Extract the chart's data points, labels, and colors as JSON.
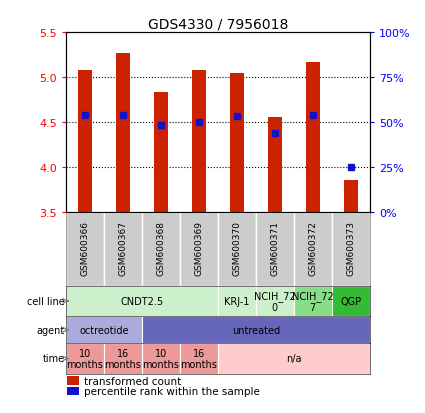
{
  "title": "GDS4330 / 7956018",
  "samples": [
    "GSM600366",
    "GSM600367",
    "GSM600368",
    "GSM600369",
    "GSM600370",
    "GSM600371",
    "GSM600372",
    "GSM600373"
  ],
  "bar_values": [
    5.08,
    5.27,
    4.83,
    5.08,
    5.05,
    4.55,
    5.17,
    3.85
  ],
  "percentile_values": [
    4.58,
    4.58,
    4.47,
    4.5,
    4.57,
    4.38,
    4.58,
    4.0
  ],
  "ylim": [
    3.5,
    5.5
  ],
  "yticks_left": [
    3.5,
    4.0,
    4.5,
    5.0,
    5.5
  ],
  "yticks_right_vals": [
    0,
    25,
    50,
    75,
    100
  ],
  "bar_color": "#cc2200",
  "percentile_color": "#1111cc",
  "bar_bottom": 3.5,
  "cell_line_groups": [
    {
      "label": "CNDT2.5",
      "cols": [
        0,
        1,
        2,
        3
      ],
      "color": "#ccf0cc"
    },
    {
      "label": "KRJ-1",
      "cols": [
        4
      ],
      "color": "#ccf0cc"
    },
    {
      "label": "NCIH_72\n0",
      "cols": [
        5
      ],
      "color": "#ccf0cc"
    },
    {
      "label": "NCIH_72\n7",
      "cols": [
        6
      ],
      "color": "#88dd88"
    },
    {
      "label": "QGP",
      "cols": [
        7
      ],
      "color": "#33bb33"
    }
  ],
  "agent_groups": [
    {
      "label": "octreotide",
      "cols": [
        0,
        1
      ],
      "color": "#aaaadd"
    },
    {
      "label": "untreated",
      "cols": [
        2,
        3,
        4,
        5,
        6,
        7
      ],
      "color": "#6666bb"
    }
  ],
  "time_groups": [
    {
      "label": "10\nmonths",
      "cols": [
        0
      ],
      "color": "#ee9999"
    },
    {
      "label": "16\nmonths",
      "cols": [
        1
      ],
      "color": "#ee9999"
    },
    {
      "label": "10\nmonths",
      "cols": [
        2
      ],
      "color": "#ee9999"
    },
    {
      "label": "16\nmonths",
      "cols": [
        3
      ],
      "color": "#ee9999"
    },
    {
      "label": "n/a",
      "cols": [
        4,
        5,
        6,
        7
      ],
      "color": "#ffcccc"
    }
  ],
  "legend_bar_label": "transformed count",
  "legend_pct_label": "percentile rank within the sample",
  "row_labels": [
    "cell line",
    "agent",
    "time"
  ],
  "bg_color": "#ffffff",
  "sample_bg": "#cccccc",
  "grid_dotted_vals": [
    4.0,
    4.5,
    5.0
  ]
}
